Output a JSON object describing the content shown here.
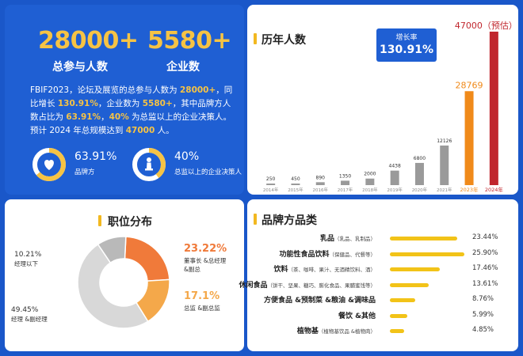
{
  "summary": {
    "participants_value": "28000+",
    "participants_label": "总参与人数",
    "companies_value": "5580+",
    "companies_label": "企业数",
    "desc_parts": [
      {
        "t": "FBIF2023，论坛及展览的总参与人数为 ",
        "hl": false
      },
      {
        "t": "28000+",
        "hl": true
      },
      {
        "t": "，同比增长 ",
        "hl": false
      },
      {
        "t": "130.91%",
        "hl": true
      },
      {
        "t": "，企业数为 ",
        "hl": false
      },
      {
        "t": "5580+",
        "hl": true
      },
      {
        "t": "，其中品牌方人数占比为 ",
        "hl": false
      },
      {
        "t": "63.91%",
        "hl": true
      },
      {
        "t": "，",
        "hl": false
      },
      {
        "t": "40%",
        "hl": true
      },
      {
        "t": " 为总监以上的企业决策人。 预计 2024 年总规模达到 ",
        "hl": false
      },
      {
        "t": "47000",
        "hl": true
      },
      {
        "t": " 人。",
        "hl": false
      }
    ],
    "stat1_value": "63.91%",
    "stat1_label": "品牌方",
    "stat1_ratio": 0.6391,
    "stat2_value": "40%",
    "stat2_label": "总监以上的企业决策人",
    "stat2_ratio": 0.4,
    "stat1_icon": "heart-icon",
    "stat2_icon": "chess-pawn-icon"
  },
  "yearly": {
    "title": "历年人数",
    "growth_label": "增长率",
    "growth_value": "130.91%",
    "forecast_label": "47000（预估）"
  },
  "position": {
    "title": "职位分布"
  },
  "brand": {
    "title": "品牌方品类"
  },
  "colors": {
    "blue": "#1f5fd3",
    "yellow": "#f6c344",
    "gray_bar": "#9a9a9a",
    "orange_bar": "#f08a1a",
    "red_bar": "#c0262d",
    "donut_orange": "#f07a3a",
    "donut_light_orange": "#f4a84a",
    "donut_gray": "#d8d8d8",
    "donut_light_gray": "#b9b9b9"
  },
  "chart_data": [
    {
      "type": "bar",
      "title": "历年人数",
      "categories": [
        "2014年",
        "2015年",
        "2016年",
        "2017年",
        "2018年",
        "2019年",
        "2020年",
        "2021年",
        "2023年",
        "2024年"
      ],
      "values": [
        250,
        450,
        890,
        1350,
        2000,
        4438,
        6800,
        12126,
        28769,
        47000
      ],
      "labels": [
        "250",
        "450",
        "890",
        "1350",
        "2000",
        "4438",
        "6800",
        "12126",
        "28769",
        "47000（预估）"
      ],
      "ylim": [
        0,
        47000
      ]
    },
    {
      "type": "pie",
      "title": "职位分布",
      "slices": [
        {
          "name": "董事长 &总经理 &副总",
          "value": 23.22,
          "label": "23.22%"
        },
        {
          "name": "总监 &副总监",
          "value": 17.1,
          "label": "17.1%"
        },
        {
          "name": "经理 &副经理",
          "value": 49.45,
          "label": "49.45%"
        },
        {
          "name": "经理以下",
          "value": 10.21,
          "label": "10.21%"
        }
      ]
    },
    {
      "type": "bar",
      "title": "品牌方品类",
      "categories": [
        {
          "main": "乳品",
          "sub": "（乳品、乳制品）"
        },
        {
          "main": "功能性食品饮料",
          "sub": "（保健品、代餐等）"
        },
        {
          "main": "饮料",
          "sub": "（茶、咖啡、果汁、无酒精饮料、酒）"
        },
        {
          "main": "休闲食品",
          "sub": "（饼干、坚果、糖巧、膨化食品、果脯蜜饯等）"
        },
        {
          "main": "方便食品 &预制菜 &粮油 &调味品",
          "sub": ""
        },
        {
          "main": "餐饮 &其他",
          "sub": ""
        },
        {
          "main": "植物基",
          "sub": "（植物基饮品 &植物肉）"
        }
      ],
      "values": [
        23.44,
        25.9,
        17.46,
        13.61,
        8.76,
        5.99,
        4.85
      ],
      "labels": [
        "23.44%",
        "25.90%",
        "17.46%",
        "13.61%",
        "8.76%",
        "5.99%",
        "4.85%"
      ],
      "xlim": [
        0,
        25.9
      ]
    }
  ]
}
